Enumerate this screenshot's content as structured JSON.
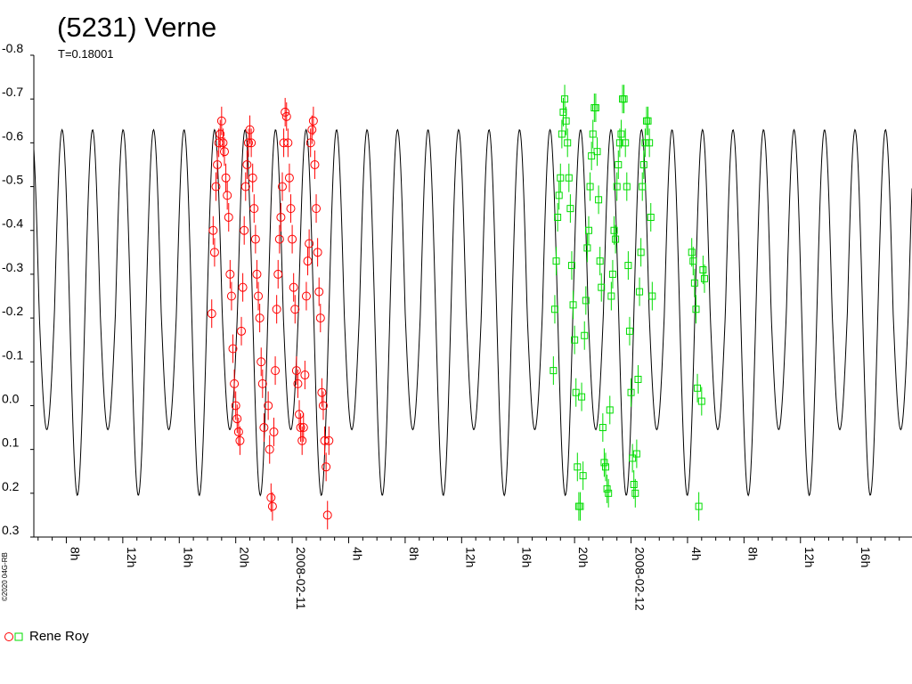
{
  "chart_data": {
    "type": "scatter",
    "title": "(5231) Verne",
    "subtitle": "T=0.18001",
    "copyright": "©2020 04G-RB",
    "y_axis": {
      "inverted": true,
      "range": [
        -0.8,
        0.3
      ],
      "ticks": [
        "-0.8",
        "-0.7",
        "-0.6",
        "-0.5",
        "-0.4",
        "-0.3",
        "-0.2",
        "-0.1",
        "0.0",
        "0.1",
        "0.2",
        "0.3"
      ]
    },
    "x_axis": {
      "unit": "hours",
      "range": [
        5.7,
        67.9
      ],
      "ticks": [
        {
          "t": 8,
          "label": "8h"
        },
        {
          "t": 12,
          "label": "12h"
        },
        {
          "t": 16,
          "label": "16h"
        },
        {
          "t": 20,
          "label": "20h"
        },
        {
          "t": 24,
          "label": "2008-02-11"
        },
        {
          "t": 28,
          "label": "4h"
        },
        {
          "t": 32,
          "label": "8h"
        },
        {
          "t": 36,
          "label": "12h"
        },
        {
          "t": 40,
          "label": "16h"
        },
        {
          "t": 44,
          "label": "20h"
        },
        {
          "t": 48,
          "label": "2008-02-12"
        },
        {
          "t": 52,
          "label": "4h"
        },
        {
          "t": 56,
          "label": "8h"
        },
        {
          "t": 60,
          "label": "12h"
        },
        {
          "t": 64,
          "label": "16h"
        }
      ]
    },
    "model_curve": {
      "period_hours": 4.32024,
      "phase_peak_hours": 7.7,
      "min_mag": -0.63,
      "max_mag": 0.205,
      "secondary_max_mag": 0.055,
      "color": "#000000"
    },
    "legend": [
      {
        "label": "Rene Roy",
        "markers": [
          "circle",
          "square"
        ],
        "colors": [
          "#ff0000",
          "#00dd00"
        ]
      }
    ],
    "series": [
      {
        "marker": "circle",
        "color": "#ff0000",
        "points": [
          [
            18.3,
            -0.21
          ],
          [
            18.4,
            -0.4
          ],
          [
            18.5,
            -0.35
          ],
          [
            18.6,
            -0.5
          ],
          [
            18.7,
            -0.55
          ],
          [
            18.8,
            -0.6
          ],
          [
            18.9,
            -0.62
          ],
          [
            19.0,
            -0.65
          ],
          [
            19.1,
            -0.6
          ],
          [
            19.2,
            -0.58
          ],
          [
            19.3,
            -0.52
          ],
          [
            19.4,
            -0.48
          ],
          [
            19.5,
            -0.43
          ],
          [
            19.6,
            -0.3
          ],
          [
            19.7,
            -0.25
          ],
          [
            19.8,
            -0.13
          ],
          [
            19.9,
            -0.05
          ],
          [
            20.0,
            0.0
          ],
          [
            20.1,
            0.03
          ],
          [
            20.2,
            0.06
          ],
          [
            20.3,
            0.08
          ],
          [
            20.4,
            -0.17
          ],
          [
            20.5,
            -0.27
          ],
          [
            20.6,
            -0.4
          ],
          [
            20.7,
            -0.5
          ],
          [
            20.8,
            -0.55
          ],
          [
            20.9,
            -0.6
          ],
          [
            21.0,
            -0.63
          ],
          [
            21.1,
            -0.6
          ],
          [
            21.2,
            -0.52
          ],
          [
            21.3,
            -0.45
          ],
          [
            21.4,
            -0.38
          ],
          [
            21.5,
            -0.3
          ],
          [
            21.6,
            -0.25
          ],
          [
            21.7,
            -0.2
          ],
          [
            21.8,
            -0.1
          ],
          [
            21.9,
            -0.05
          ],
          [
            22.0,
            0.05
          ],
          [
            22.3,
            0.0
          ],
          [
            22.4,
            0.1
          ],
          [
            22.5,
            0.21
          ],
          [
            22.6,
            0.23
          ],
          [
            22.7,
            0.06
          ],
          [
            22.8,
            -0.08
          ],
          [
            22.9,
            -0.22
          ],
          [
            23.0,
            -0.3
          ],
          [
            23.1,
            -0.38
          ],
          [
            23.2,
            -0.43
          ],
          [
            23.3,
            -0.5
          ],
          [
            23.4,
            -0.6
          ],
          [
            23.5,
            -0.67
          ],
          [
            23.6,
            -0.66
          ],
          [
            23.7,
            -0.6
          ],
          [
            23.8,
            -0.52
          ],
          [
            23.9,
            -0.45
          ],
          [
            24.0,
            -0.38
          ],
          [
            24.1,
            -0.27
          ],
          [
            24.2,
            -0.22
          ],
          [
            24.3,
            -0.08
          ],
          [
            24.4,
            -0.05
          ],
          [
            24.5,
            0.02
          ],
          [
            24.6,
            0.05
          ],
          [
            24.7,
            0.08
          ],
          [
            24.8,
            0.05
          ],
          [
            24.9,
            -0.07
          ],
          [
            25.0,
            -0.25
          ],
          [
            25.1,
            -0.33
          ],
          [
            25.2,
            -0.37
          ],
          [
            25.3,
            -0.6
          ],
          [
            25.4,
            -0.63
          ],
          [
            25.5,
            -0.65
          ],
          [
            25.6,
            -0.55
          ],
          [
            25.7,
            -0.45
          ],
          [
            25.8,
            -0.35
          ],
          [
            25.9,
            -0.26
          ],
          [
            26.0,
            -0.2
          ],
          [
            26.1,
            -0.03
          ],
          [
            26.2,
            0.0
          ],
          [
            26.3,
            0.08
          ],
          [
            26.4,
            0.14
          ],
          [
            26.5,
            0.25
          ],
          [
            26.6,
            0.08
          ]
        ]
      },
      {
        "marker": "square",
        "color": "#00dd00",
        "points": [
          [
            42.5,
            -0.08
          ],
          [
            42.6,
            -0.22
          ],
          [
            42.7,
            -0.33
          ],
          [
            42.8,
            -0.43
          ],
          [
            42.9,
            -0.48
          ],
          [
            43.0,
            -0.52
          ],
          [
            43.1,
            -0.62
          ],
          [
            43.2,
            -0.67
          ],
          [
            43.3,
            -0.7
          ],
          [
            43.4,
            -0.65
          ],
          [
            43.5,
            -0.6
          ],
          [
            43.6,
            -0.52
          ],
          [
            43.7,
            -0.45
          ],
          [
            43.8,
            -0.32
          ],
          [
            43.9,
            -0.23
          ],
          [
            44.0,
            -0.15
          ],
          [
            44.1,
            -0.03
          ],
          [
            44.2,
            0.14
          ],
          [
            44.3,
            0.23
          ],
          [
            44.4,
            0.23
          ],
          [
            44.5,
            -0.02
          ],
          [
            44.6,
            0.16
          ],
          [
            44.7,
            -0.16
          ],
          [
            44.8,
            -0.24
          ],
          [
            44.9,
            -0.36
          ],
          [
            45.0,
            -0.4
          ],
          [
            45.1,
            -0.5
          ],
          [
            45.2,
            -0.57
          ],
          [
            45.3,
            -0.62
          ],
          [
            45.4,
            -0.68
          ],
          [
            45.5,
            -0.68
          ],
          [
            45.6,
            -0.58
          ],
          [
            45.7,
            -0.47
          ],
          [
            45.8,
            -0.33
          ],
          [
            45.9,
            -0.27
          ],
          [
            46.0,
            0.05
          ],
          [
            46.1,
            0.13
          ],
          [
            46.2,
            0.14
          ],
          [
            46.3,
            0.19
          ],
          [
            46.4,
            0.2
          ],
          [
            46.5,
            0.01
          ],
          [
            46.6,
            -0.25
          ],
          [
            46.7,
            -0.3
          ],
          [
            46.8,
            -0.4
          ],
          [
            46.9,
            -0.38
          ],
          [
            47.0,
            -0.5
          ],
          [
            47.1,
            -0.55
          ],
          [
            47.2,
            -0.6
          ],
          [
            47.3,
            -0.62
          ],
          [
            47.4,
            -0.7
          ],
          [
            47.5,
            -0.7
          ],
          [
            47.6,
            -0.6
          ],
          [
            47.7,
            -0.5
          ],
          [
            47.8,
            -0.32
          ],
          [
            47.9,
            -0.17
          ],
          [
            48.0,
            -0.03
          ],
          [
            48.1,
            0.12
          ],
          [
            48.2,
            0.18
          ],
          [
            48.3,
            0.2
          ],
          [
            48.4,
            0.11
          ],
          [
            48.5,
            -0.06
          ],
          [
            48.6,
            -0.26
          ],
          [
            48.7,
            -0.35
          ],
          [
            48.8,
            -0.5
          ],
          [
            48.9,
            -0.55
          ],
          [
            49.0,
            -0.6
          ],
          [
            49.1,
            -0.65
          ],
          [
            49.2,
            -0.65
          ],
          [
            49.3,
            -0.6
          ],
          [
            49.4,
            -0.43
          ],
          [
            49.5,
            -0.25
          ],
          [
            52.3,
            -0.35
          ],
          [
            52.4,
            -0.33
          ],
          [
            52.5,
            -0.28
          ],
          [
            52.6,
            -0.22
          ],
          [
            52.7,
            -0.04
          ],
          [
            52.8,
            0.23
          ],
          [
            53.0,
            -0.01
          ],
          [
            53.1,
            -0.31
          ],
          [
            53.2,
            -0.29
          ]
        ]
      }
    ]
  }
}
